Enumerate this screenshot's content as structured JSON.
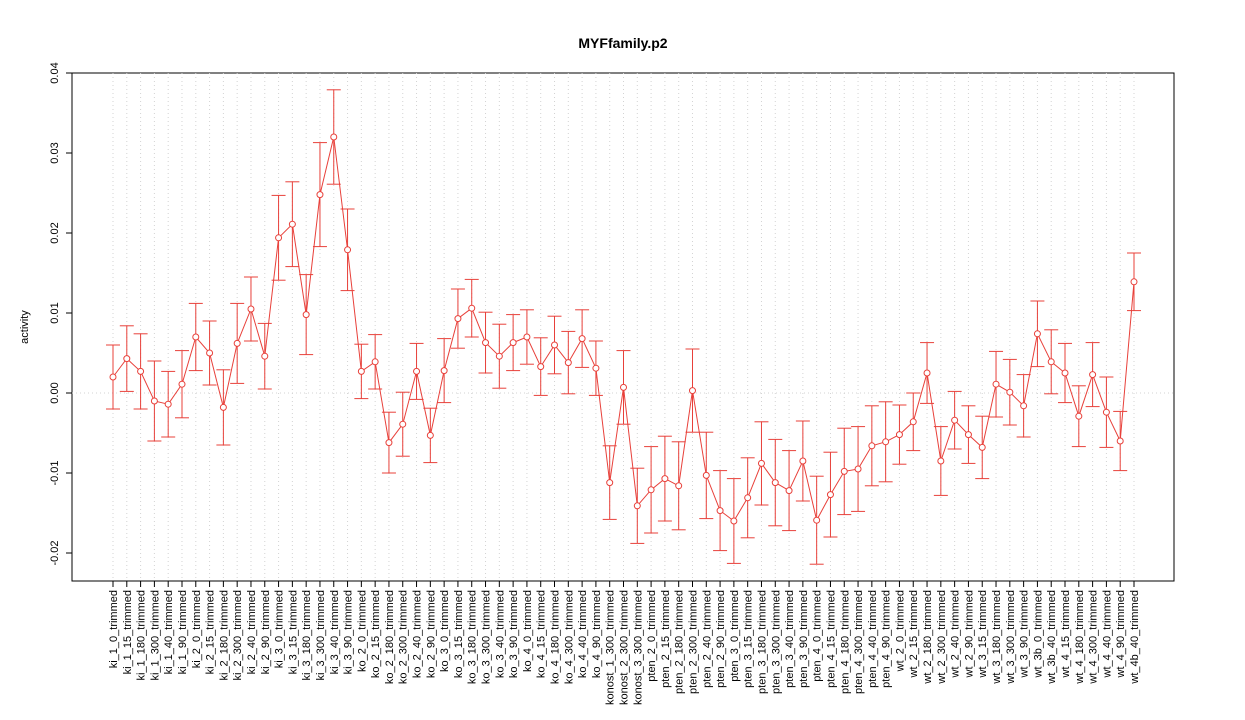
{
  "chart_data": {
    "type": "line",
    "title": "MYFfamily.p2",
    "y_label": "activity",
    "categories": [
      "ki_1_0_trimmed",
      "ki_1_15_trimmed",
      "ki_1_180_trimmed",
      "ki_1_300_trimmed",
      "ki_1_40_trimmed",
      "ki_1_90_trimmed",
      "ki_2_0_trimmed",
      "ki_2_15_trimmed",
      "ki_2_180_trimmed",
      "ki_2_300_trimmed",
      "ki_2_40_trimmed",
      "ki_2_90_trimmed",
      "ki_3_0_trimmed",
      "ki_3_15_trimmed",
      "ki_3_180_trimmed",
      "ki_3_300_trimmed",
      "ki_3_40_trimmed",
      "ki_3_90_trimmed",
      "ko_2_0_trimmed",
      "ko_2_15_trimmed",
      "ko_2_180_trimmed",
      "ko_2_300_trimmed",
      "ko_2_40_trimmed",
      "ko_2_90_trimmed",
      "ko_3_0_trimmed",
      "ko_3_15_trimmed",
      "ko_3_180_trimmed",
      "ko_3_300_trimmed",
      "ko_3_40_trimmed",
      "ko_3_90_trimmed",
      "ko_4_0_trimmed",
      "ko_4_15_trimmed",
      "ko_4_180_trimmed",
      "ko_4_300_trimmed",
      "ko_4_40_trimmed",
      "ko_4_90_trimmed",
      "konost_1_300_trimmed",
      "konost_2_300_trimmed",
      "konost_3_300_trimmed",
      "pten_2_0_trimmed",
      "pten_2_15_trimmed",
      "pten_2_180_trimmed",
      "pten_2_300_trimmed",
      "pten_2_40_trimmed",
      "pten_2_90_trimmed",
      "pten_3_0_trimmed",
      "pten_3_15_trimmed",
      "pten_3_180_trimmed",
      "pten_3_300_trimmed",
      "pten_3_40_trimmed",
      "pten_3_90_trimmed",
      "pten_4_0_trimmed",
      "pten_4_15_trimmed",
      "pten_4_180_trimmed",
      "pten_4_300_trimmed",
      "pten_4_40_trimmed",
      "pten_4_90_trimmed",
      "wt_2_0_trimmed",
      "wt_2_15_trimmed",
      "wt_2_180_trimmed",
      "wt_2_300_trimmed",
      "wt_2_40_trimmed",
      "wt_2_90_trimmed",
      "wt_3_15_trimmed",
      "wt_3_180_trimmed",
      "wt_3_300_trimmed",
      "wt_3_90_trimmed",
      "wt_3b_0_trimmed",
      "wt_3b_40_trimmed",
      "wt_4_15_trimmed",
      "wt_4_180_trimmed",
      "wt_4_300_trimmed",
      "wt_4_40_trimmed",
      "wt_4_90_trimmed",
      "wt_4b_40_trimmed"
    ],
    "values": [
      0.002,
      0.0043,
      0.0027,
      -0.001,
      -0.0014,
      0.0011,
      0.007,
      0.005,
      -0.0018,
      0.0062,
      0.0105,
      0.0046,
      0.0194,
      0.0211,
      0.0098,
      0.0248,
      0.032,
      0.0179,
      0.0027,
      0.0039,
      -0.0062,
      -0.0039,
      0.0027,
      -0.0053,
      0.0028,
      0.0093,
      0.0106,
      0.0063,
      0.0046,
      0.0063,
      0.007,
      0.0033,
      0.006,
      0.0038,
      0.0068,
      0.0031,
      -0.0112,
      0.0007,
      -0.0141,
      -0.0121,
      -0.0107,
      -0.0116,
      0.0003,
      -0.0103,
      -0.0147,
      -0.016,
      -0.0131,
      -0.0088,
      -0.0112,
      -0.0122,
      -0.0085,
      -0.0159,
      -0.0127,
      -0.0098,
      -0.0095,
      -0.0066,
      -0.0061,
      -0.0052,
      -0.0036,
      0.0025,
      -0.0085,
      -0.0034,
      -0.0052,
      -0.0068,
      0.0011,
      0.0001,
      -0.0016,
      0.0074,
      0.0039,
      0.0025,
      -0.0029,
      0.0023,
      -0.0024,
      -0.006,
      0.0139
    ],
    "errors": [
      0.004,
      0.0041,
      0.0047,
      0.005,
      0.0041,
      0.0042,
      0.0042,
      0.004,
      0.0047,
      0.005,
      0.004,
      0.0041,
      0.0053,
      0.0053,
      0.005,
      0.0065,
      0.0059,
      0.0051,
      0.0034,
      0.0034,
      0.0038,
      0.004,
      0.0035,
      0.0034,
      0.004,
      0.0037,
      0.0036,
      0.0038,
      0.004,
      0.0035,
      0.0034,
      0.0036,
      0.0036,
      0.0039,
      0.0036,
      0.0034,
      0.0046,
      0.0046,
      0.0047,
      0.0054,
      0.0053,
      0.0055,
      0.0052,
      0.0054,
      0.005,
      0.0053,
      0.005,
      0.0052,
      0.0054,
      0.005,
      0.005,
      0.0055,
      0.0053,
      0.0054,
      0.0053,
      0.005,
      0.005,
      0.0037,
      0.0036,
      0.0038,
      0.0043,
      0.0036,
      0.0036,
      0.0039,
      0.0041,
      0.0041,
      0.0039,
      0.0041,
      0.004,
      0.0037,
      0.0038,
      0.004,
      0.0044,
      0.0037,
      0.0036
    ],
    "color": "#e8403a",
    "ylim": [
      -0.0235,
      0.04
    ],
    "yticks": [
      -0.02,
      -0.01,
      {
        "value": 0,
        "label": "0.00"
      },
      0.01,
      0.02,
      0.03,
      0.04
    ],
    "grid": true,
    "reference_line": 0
  }
}
